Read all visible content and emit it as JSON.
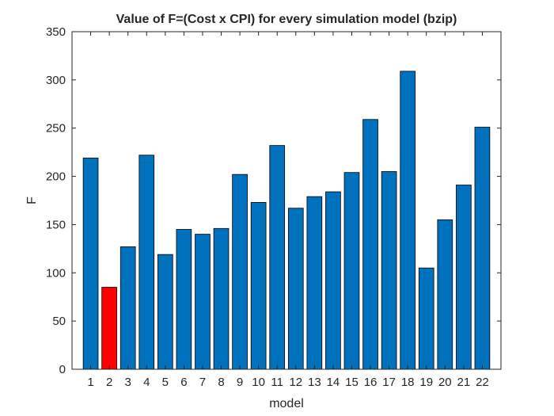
{
  "chart_data": {
    "type": "bar",
    "title": "Value of F=(Cost x CPI) for every simulation model (bzip)",
    "xlabel": "model",
    "ylabel": "F",
    "ylim": [
      0,
      350
    ],
    "yticks": [
      0,
      50,
      100,
      150,
      200,
      250,
      300,
      350
    ],
    "categories": [
      "1",
      "2",
      "3",
      "4",
      "5",
      "6",
      "7",
      "8",
      "9",
      "10",
      "11",
      "12",
      "13",
      "14",
      "15",
      "16",
      "17",
      "18",
      "19",
      "20",
      "21",
      "22"
    ],
    "values": [
      219,
      85,
      127,
      222,
      119,
      145,
      140,
      146,
      202,
      173,
      232,
      167,
      179,
      184,
      204,
      259,
      205,
      309,
      105,
      155,
      191,
      251
    ],
    "bar_color": "#0072bd",
    "highlight_color": "#ff0000",
    "highlight_index": 1,
    "grid": false,
    "legend": "none"
  }
}
